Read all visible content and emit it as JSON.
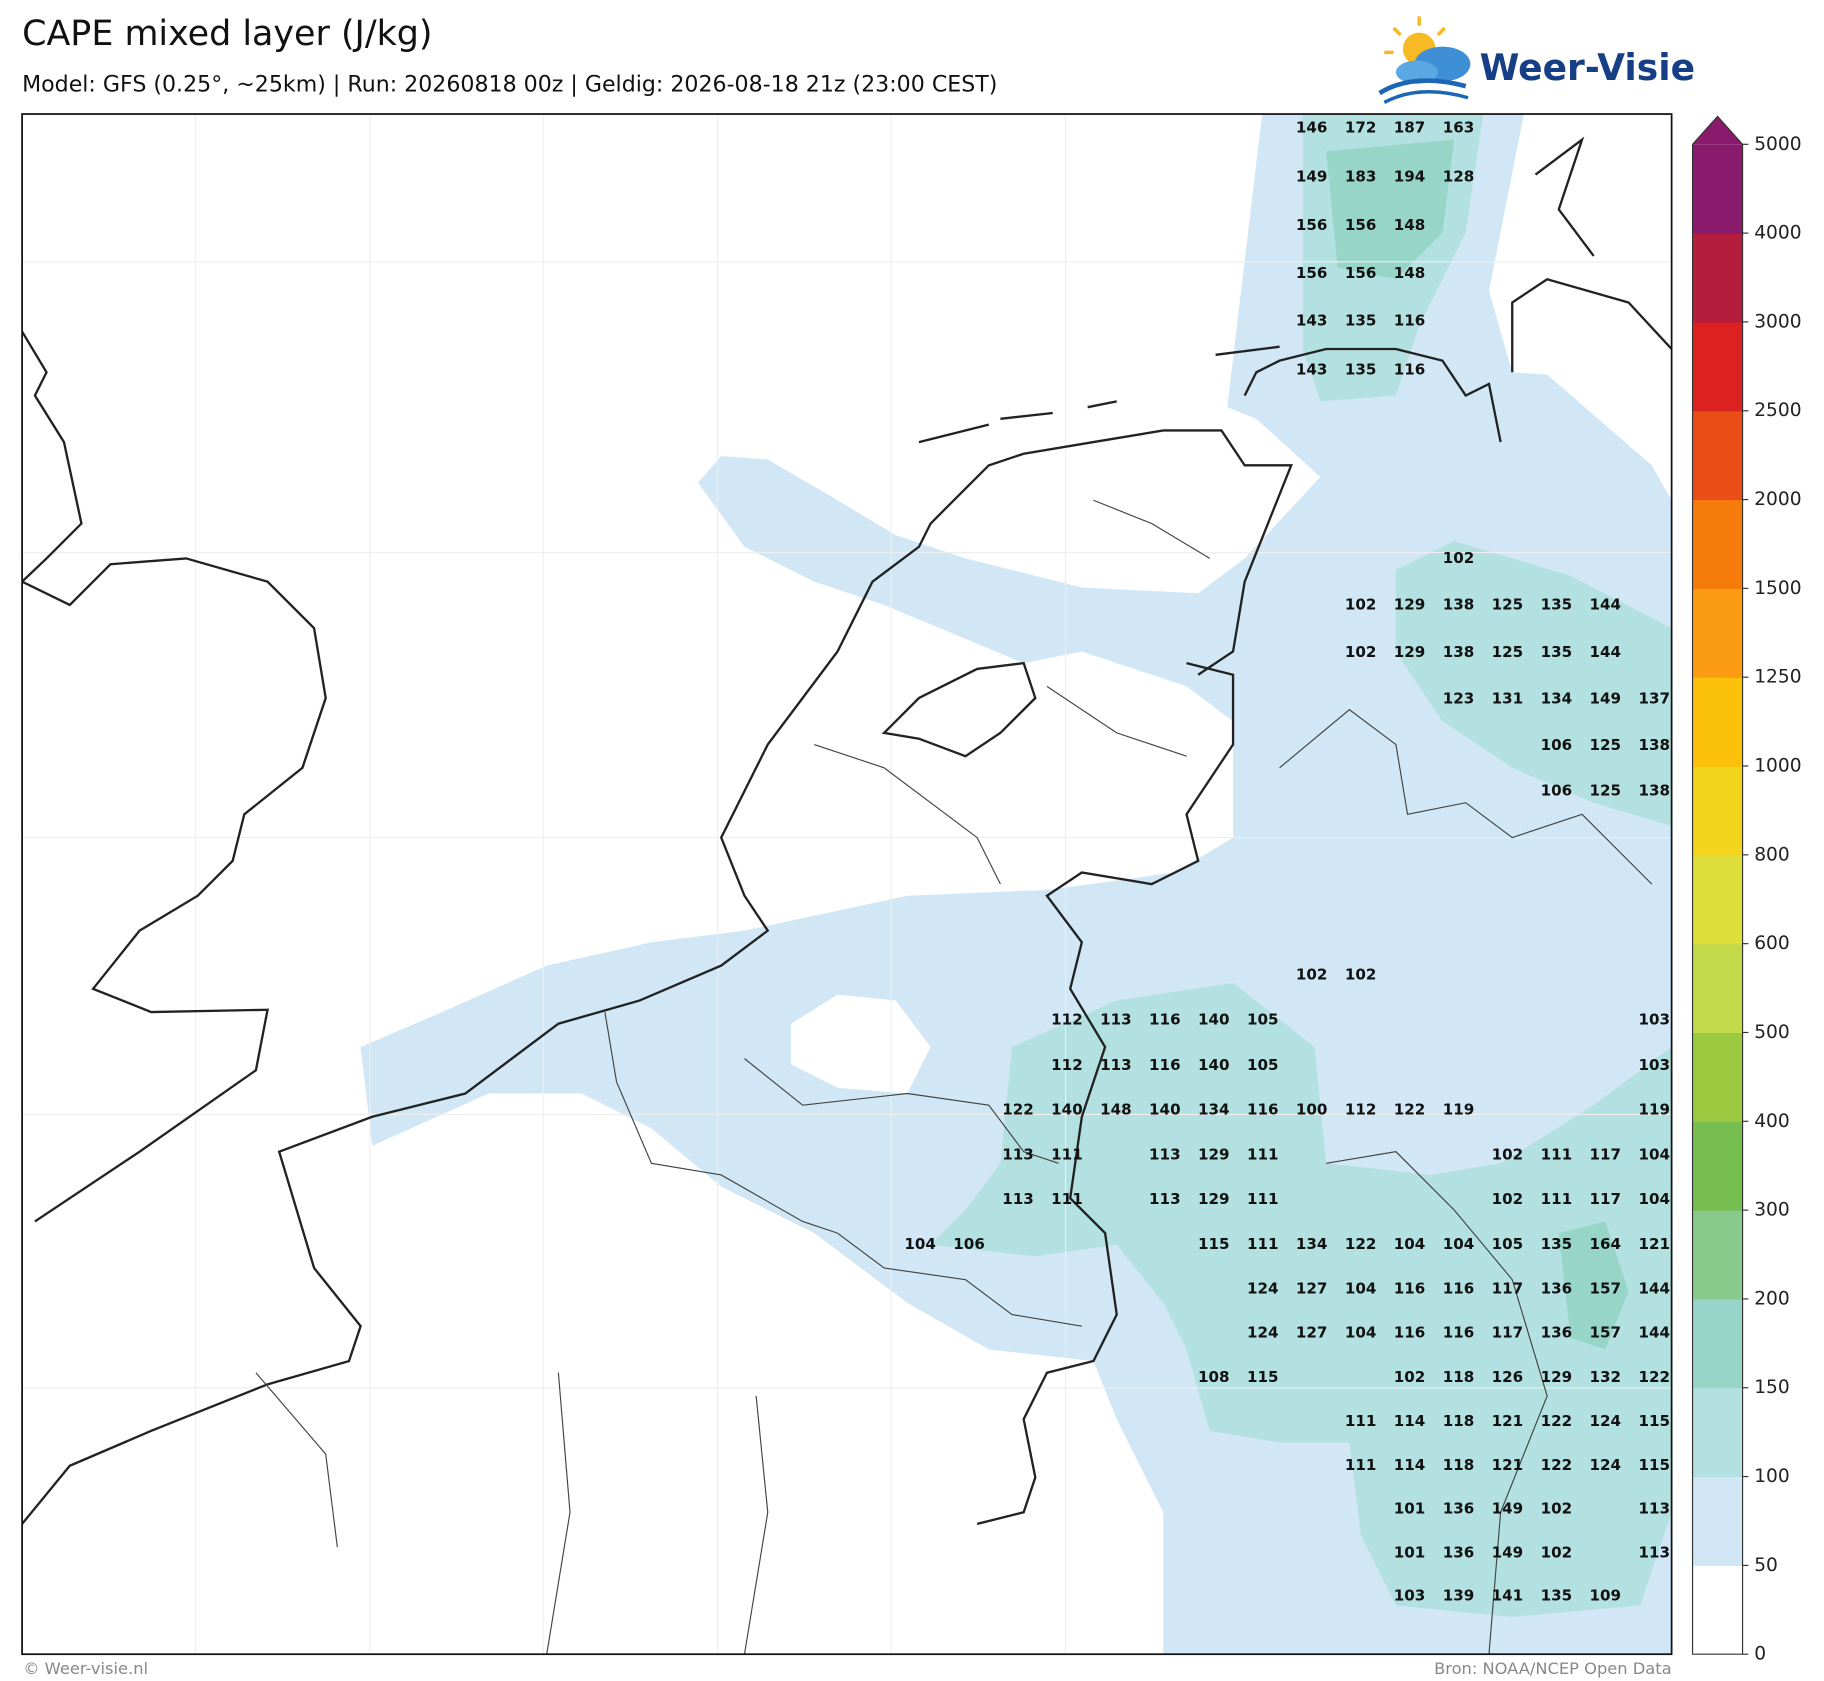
{
  "header": {
    "title": "CAPE mixed layer (J/kg)",
    "subtitle": "Model: GFS (0.25°, ~25km)  |  Run: 20260818 00z  |  Geldig: 2026-08-18 21z (23:00 CEST)"
  },
  "logo": {
    "text": "Weer-Visie"
  },
  "map": {
    "grid": [
      [
        null,
        null,
        null,
        null,
        null,
        null,
        null,
        null,
        146,
        172,
        187,
        163,
        null,
        null,
        null,
        null
      ],
      [
        null,
        null,
        null,
        null,
        null,
        null,
        null,
        null,
        149,
        183,
        194,
        128,
        null,
        null,
        null,
        null
      ],
      [
        null,
        null,
        null,
        null,
        null,
        null,
        null,
        null,
        156,
        156,
        148,
        null,
        null,
        null,
        null,
        null
      ],
      [
        null,
        null,
        null,
        null,
        null,
        null,
        null,
        null,
        156,
        156,
        148,
        null,
        null,
        null,
        null,
        null
      ],
      [
        null,
        null,
        null,
        null,
        null,
        null,
        null,
        null,
        143,
        135,
        116,
        null,
        null,
        null,
        null,
        null
      ],
      [
        null,
        null,
        null,
        null,
        null,
        null,
        null,
        null,
        143,
        135,
        116,
        null,
        null,
        null,
        null,
        null
      ],
      [
        null,
        null,
        null,
        null,
        null,
        null,
        null,
        null,
        null,
        null,
        null,
        102,
        null,
        null,
        null,
        null
      ],
      [
        null,
        null,
        null,
        null,
        null,
        null,
        null,
        null,
        null,
        102,
        129,
        138,
        125,
        135,
        144,
        null
      ],
      [
        null,
        null,
        null,
        null,
        null,
        null,
        null,
        null,
        null,
        102,
        129,
        138,
        125,
        135,
        144,
        null
      ],
      [
        null,
        null,
        null,
        null,
        null,
        null,
        null,
        null,
        null,
        null,
        null,
        123,
        131,
        134,
        149,
        137
      ],
      [
        null,
        null,
        null,
        null,
        null,
        null,
        null,
        null,
        null,
        null,
        null,
        null,
        null,
        106,
        125,
        138
      ],
      [
        null,
        null,
        null,
        null,
        null,
        null,
        null,
        null,
        null,
        null,
        null,
        null,
        null,
        106,
        125,
        138
      ],
      [
        null,
        null,
        null,
        null,
        null,
        null,
        null,
        null,
        102,
        102,
        null,
        null,
        null,
        null,
        null,
        null
      ],
      [
        null,
        null,
        null,
        112,
        113,
        116,
        140,
        105,
        null,
        null,
        null,
        null,
        null,
        null,
        null,
        103
      ],
      [
        null,
        null,
        null,
        112,
        113,
        116,
        140,
        105,
        null,
        null,
        null,
        null,
        null,
        null,
        null,
        103
      ],
      [
        null,
        null,
        122,
        140,
        148,
        140,
        134,
        116,
        100,
        112,
        122,
        119,
        null,
        null,
        null,
        119
      ],
      [
        null,
        null,
        113,
        111,
        null,
        113,
        129,
        111,
        null,
        null,
        null,
        null,
        102,
        111,
        117,
        104
      ],
      [
        null,
        null,
        113,
        111,
        null,
        113,
        129,
        111,
        null,
        null,
        null,
        null,
        102,
        111,
        117,
        104
      ],
      [
        104,
        106,
        null,
        null,
        null,
        null,
        115,
        111,
        134,
        122,
        104,
        104,
        105,
        135,
        164,
        121
      ],
      [
        null,
        null,
        null,
        null,
        null,
        null,
        null,
        124,
        127,
        104,
        116,
        116,
        117,
        136,
        157,
        144
      ],
      [
        null,
        null,
        null,
        null,
        null,
        null,
        null,
        124,
        127,
        104,
        116,
        116,
        117,
        136,
        157,
        144
      ],
      [
        null,
        null,
        null,
        null,
        null,
        null,
        108,
        115,
        null,
        null,
        102,
        118,
        126,
        129,
        132,
        122
      ],
      [
        null,
        null,
        null,
        null,
        null,
        null,
        null,
        null,
        null,
        111,
        114,
        118,
        121,
        122,
        124,
        115
      ],
      [
        null,
        null,
        null,
        null,
        null,
        null,
        null,
        null,
        null,
        111,
        114,
        118,
        121,
        122,
        124,
        115
      ],
      [
        null,
        null,
        null,
        null,
        null,
        null,
        null,
        null,
        null,
        null,
        101,
        136,
        149,
        102,
        null,
        113
      ],
      [
        null,
        null,
        null,
        null,
        null,
        null,
        null,
        null,
        null,
        null,
        101,
        136,
        149,
        102,
        null,
        113
      ],
      [
        null,
        null,
        null,
        null,
        null,
        null,
        null,
        null,
        null,
        null,
        103,
        139,
        141,
        135,
        109,
        null
      ]
    ]
  },
  "colorbar": {
    "ticks": [
      0,
      50,
      100,
      150,
      200,
      300,
      400,
      500,
      600,
      800,
      1000,
      1250,
      1500,
      2000,
      2500,
      3000,
      4000,
      5000
    ],
    "colors": [
      "#ffffff",
      "#d1e7f6",
      "#b3e0e0",
      "#98d5c9",
      "#87ca8c",
      "#76be4f",
      "#9bc93f",
      "#c2d94a",
      "#dfdf3b",
      "#f3d41c",
      "#fcc10a",
      "#fb9c12",
      "#f57c0b",
      "#e84e16",
      "#dc2121",
      "#b51d3f",
      "#8a1a6b"
    ]
  },
  "footer": {
    "left": "© Weer-visie.nl",
    "right": "Bron: NOAA/NCEP Open Data"
  }
}
